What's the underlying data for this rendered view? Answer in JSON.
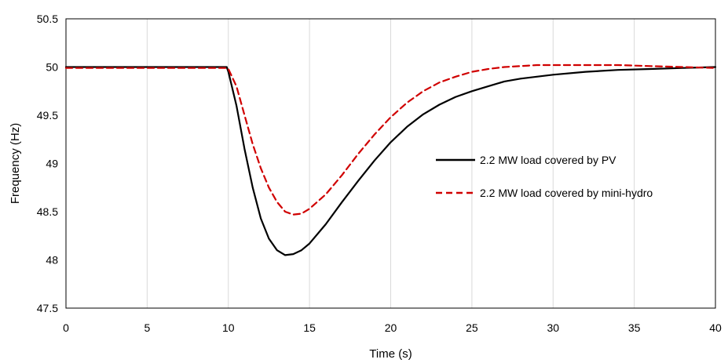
{
  "chart_data": {
    "type": "line",
    "title": "",
    "xlabel": "Time (s)",
    "ylabel": "Frequency (Hz)",
    "xlim": [
      0,
      40
    ],
    "ylim": [
      47.5,
      50.5
    ],
    "xticks": [
      0,
      5,
      10,
      15,
      20,
      25,
      30,
      35,
      40
    ],
    "yticks": [
      47.5,
      48,
      48.5,
      49,
      49.5,
      50,
      50.5
    ],
    "xtick_labels": [
      "0",
      "5",
      "10",
      "15",
      "20",
      "25",
      "30",
      "35",
      "40"
    ],
    "ytick_labels": [
      "47.5",
      "48",
      "48.5",
      "49",
      "49.5",
      "50",
      "50.5"
    ],
    "grid": "vertical",
    "legend_position": "right-middle",
    "series": [
      {
        "name": "2.2 MW load covered by PV",
        "color": "#000000",
        "style": "solid",
        "x": [
          0,
          9.9,
          10,
          10.5,
          11,
          11.5,
          12,
          12.5,
          13,
          13.5,
          14,
          14.5,
          15,
          16,
          17,
          18,
          19,
          20,
          21,
          22,
          23,
          24,
          25,
          26,
          27,
          28,
          29,
          30,
          32,
          34,
          36,
          38,
          40
        ],
        "y": [
          50.0,
          50.0,
          49.95,
          49.6,
          49.15,
          48.75,
          48.43,
          48.22,
          48.1,
          48.05,
          48.06,
          48.1,
          48.17,
          48.37,
          48.6,
          48.82,
          49.03,
          49.22,
          49.38,
          49.51,
          49.61,
          49.69,
          49.75,
          49.8,
          49.85,
          49.88,
          49.9,
          49.92,
          49.95,
          49.97,
          49.98,
          49.99,
          50.0
        ]
      },
      {
        "name": "2.2 MW load covered by mini-hydro",
        "color": "#d00000",
        "style": "dashed",
        "x": [
          0,
          9.9,
          10,
          10.5,
          11,
          11.5,
          12,
          12.5,
          13,
          13.5,
          14,
          14.5,
          15,
          16,
          17,
          18,
          19,
          20,
          21,
          22,
          23,
          24,
          25,
          26,
          27,
          28,
          29,
          30,
          31,
          32,
          34,
          36,
          38,
          40
        ],
        "y": [
          49.99,
          49.99,
          49.98,
          49.8,
          49.5,
          49.2,
          48.95,
          48.75,
          48.6,
          48.5,
          48.47,
          48.48,
          48.53,
          48.68,
          48.88,
          49.1,
          49.3,
          49.48,
          49.63,
          49.75,
          49.84,
          49.9,
          49.95,
          49.98,
          50.0,
          50.01,
          50.02,
          50.02,
          50.02,
          50.02,
          50.02,
          50.01,
          50.0,
          49.99
        ]
      }
    ]
  }
}
